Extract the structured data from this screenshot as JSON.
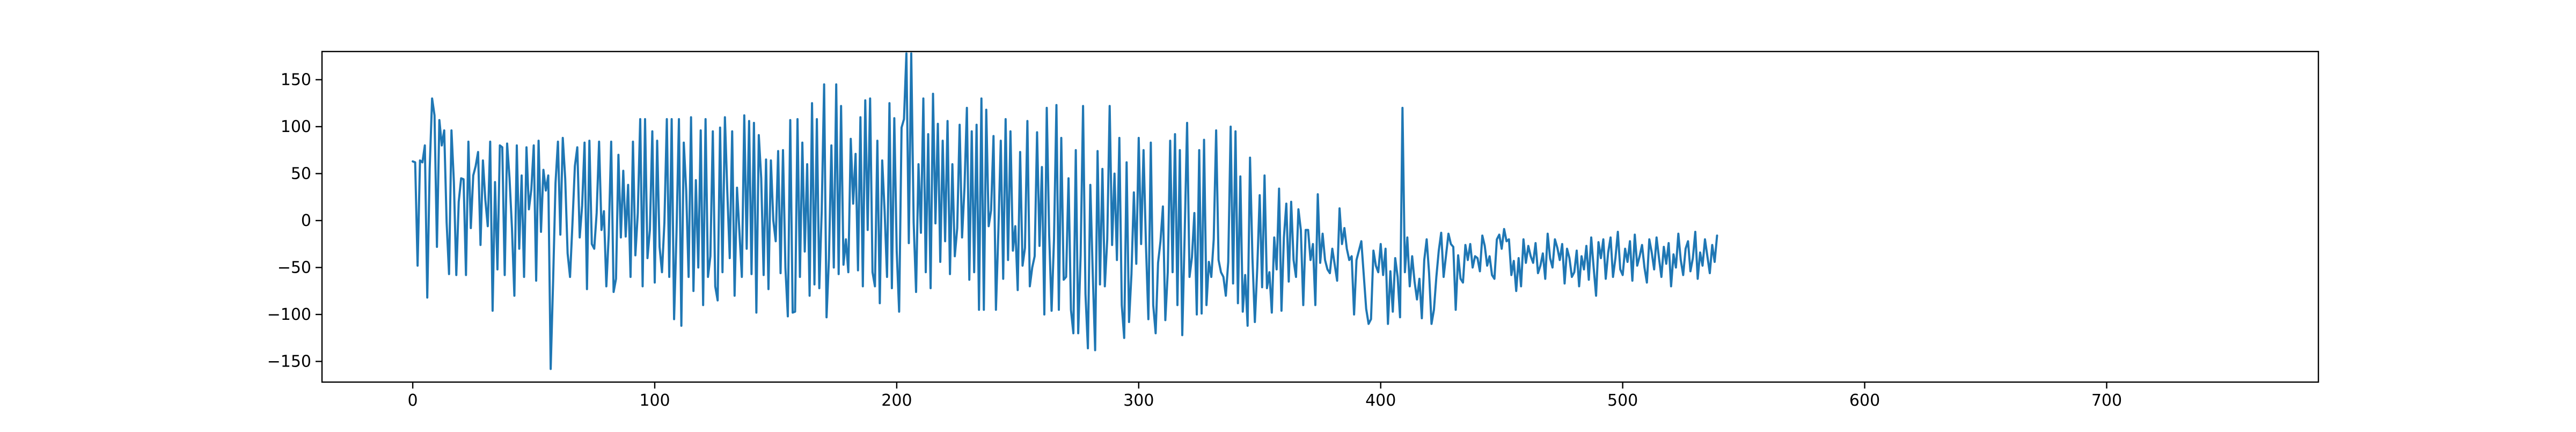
{
  "chart_data": {
    "type": "line",
    "title": "",
    "xlabel": "",
    "ylabel": "",
    "xlim": [
      -37.5,
      787.5
    ],
    "ylim": [
      -172,
      180
    ],
    "x_ticks": [
      0,
      100,
      200,
      300,
      400,
      500,
      600,
      700
    ],
    "y_ticks": [
      -150,
      -100,
      -50,
      0,
      50,
      100,
      150
    ],
    "x_tick_labels": [
      "0",
      "100",
      "200",
      "300",
      "400",
      "500",
      "600",
      "700"
    ],
    "y_tick_labels": [
      "−150",
      "−100",
      "−50",
      "0",
      "50",
      "100",
      "150"
    ],
    "grid": false,
    "legend": "none",
    "series": [
      {
        "color": "#1f77b4",
        "x_start": 0,
        "x_step": 1,
        "values": [
          63,
          62,
          -48,
          64,
          62,
          80,
          -82,
          55,
          130,
          112,
          -28,
          107,
          80,
          96,
          -2,
          -57,
          96,
          41,
          -58,
          20,
          45,
          44,
          -58,
          84,
          -8,
          48,
          58,
          73,
          -26,
          64,
          22,
          -6,
          84,
          -96,
          41,
          -52,
          80,
          78,
          -58,
          82,
          45,
          -8,
          -80,
          80,
          -30,
          48,
          -60,
          78,
          12,
          33,
          80,
          -64,
          85,
          -12,
          54,
          32,
          48,
          -158,
          -65,
          40,
          84,
          -15,
          88,
          45,
          -35,
          -60,
          -3,
          58,
          78,
          -18,
          16,
          83,
          -73,
          85,
          -25,
          -30,
          8,
          84,
          -10,
          10,
          -70,
          -15,
          84,
          -76,
          -62,
          70,
          -18,
          53,
          -17,
          38,
          -60,
          84,
          -37,
          8,
          108,
          -70,
          108,
          -40,
          -10,
          95,
          -66,
          85,
          -28,
          -55,
          -2,
          108,
          -60,
          108,
          -105,
          -13,
          108,
          -112,
          83,
          32,
          -60,
          110,
          -75,
          43,
          -50,
          96,
          -90,
          108,
          -60,
          -38,
          95,
          -70,
          -85,
          99,
          -55,
          110,
          30,
          -40,
          95,
          -80,
          35,
          -12,
          -60,
          112,
          -30,
          106,
          -57,
          104,
          -98,
          91,
          45,
          -58,
          65,
          -73,
          64,
          0,
          -22,
          74,
          -56,
          75,
          -50,
          -102,
          107,
          -98,
          -97,
          108,
          -60,
          83,
          -33,
          60,
          -80,
          125,
          -68,
          108,
          -72,
          10,
          145,
          -103,
          -40,
          80,
          -50,
          145,
          -57,
          122,
          -47,
          -20,
          -55,
          87,
          18,
          71,
          -53,
          110,
          -70,
          128,
          -10,
          130,
          -55,
          -70,
          85,
          -88,
          64,
          10,
          -60,
          125,
          -72,
          109,
          -33,
          -97,
          99,
          108,
          178,
          -24,
          178,
          -2,
          -76,
          60,
          -13,
          130,
          -55,
          92,
          -72,
          135,
          -3,
          103,
          -44,
          85,
          -22,
          106,
          -57,
          60,
          -38,
          -8,
          102,
          -18,
          35,
          120,
          -63,
          95,
          -55,
          102,
          -95,
          130,
          -95,
          118,
          -6,
          11,
          90,
          -95,
          -12,
          85,
          -62,
          108,
          -42,
          95,
          -32,
          -6,
          -74,
          73,
          -48,
          -29,
          106,
          -70,
          -50,
          -38,
          94,
          -27,
          57,
          -100,
          120,
          -15,
          -96,
          -20,
          123,
          -95,
          88,
          -63,
          -60,
          45,
          -95,
          -120,
          75,
          -120,
          -37,
          122,
          -78,
          -136,
          38,
          -56,
          -138,
          74,
          -68,
          55,
          -70,
          -20,
          122,
          -26,
          50,
          -42,
          88,
          -90,
          -125,
          62,
          -108,
          -57,
          30,
          -46,
          88,
          -25,
          75,
          -27,
          -105,
          83,
          -90,
          -120,
          -45,
          -22,
          15,
          -106,
          -55,
          85,
          -55,
          92,
          -90,
          75,
          -122,
          -14,
          104,
          -60,
          -39,
          8,
          -100,
          75,
          -99,
          86,
          -90,
          -44,
          -60,
          -20,
          96,
          -42,
          -55,
          -60,
          -80,
          -44,
          100,
          -67,
          95,
          -88,
          47,
          -97,
          -58,
          -112,
          67,
          -40,
          -108,
          -50,
          27,
          -71,
          48,
          -72,
          -55,
          -98,
          -18,
          -52,
          34,
          -96,
          -18,
          18,
          -65,
          20,
          -42,
          -60,
          12,
          -10,
          -90,
          -10,
          -10,
          -42,
          -25,
          -90,
          28,
          -45,
          -14,
          -42,
          -52,
          -56,
          -30,
          -47,
          -64,
          13,
          -25,
          -8,
          -30,
          -42,
          -38,
          -100,
          -42,
          -32,
          -22,
          -58,
          -94,
          -110,
          -105,
          -32,
          -48,
          -55,
          -25,
          -58,
          -30,
          -110,
          -54,
          -97,
          -40,
          -60,
          -103,
          120,
          -55,
          -18,
          -70,
          -38,
          -65,
          -84,
          -62,
          -104,
          -42,
          -20,
          -56,
          -110,
          -95,
          -60,
          -32,
          -13,
          -60,
          -37,
          -14,
          -25,
          -28,
          -95,
          -37,
          -62,
          -66,
          -26,
          -42,
          -25,
          -50,
          -38,
          -40,
          -54,
          -16,
          -27,
          -48,
          -38,
          -58,
          -62,
          -20,
          -15,
          -30,
          -9,
          -22,
          -20,
          -58,
          -43,
          -75,
          -40,
          -70,
          -20,
          -45,
          -27,
          -38,
          -45,
          -24,
          -56,
          -48,
          -35,
          -62,
          -14,
          -40,
          -50,
          -20,
          -29,
          -42,
          -25,
          -67,
          -30,
          -40,
          -60,
          -55,
          -32,
          -70,
          -38,
          -52,
          -27,
          -63,
          -18,
          -50,
          -80,
          -23,
          -40,
          -20,
          -62,
          -34,
          -18,
          -60,
          -40,
          -12,
          -52,
          -58,
          -30,
          -44,
          -22,
          -64,
          -15,
          -48,
          -38,
          -26,
          -50,
          -66,
          -20,
          -34,
          -52,
          -18,
          -40,
          -60,
          -28,
          -46,
          -24,
          -70,
          -36,
          -50,
          -14,
          -42,
          -58,
          -30,
          -22,
          -54,
          -40,
          -12,
          -62,
          -34,
          -48,
          -20,
          -38,
          -56,
          -26,
          -44,
          -16
        ]
      }
    ]
  }
}
